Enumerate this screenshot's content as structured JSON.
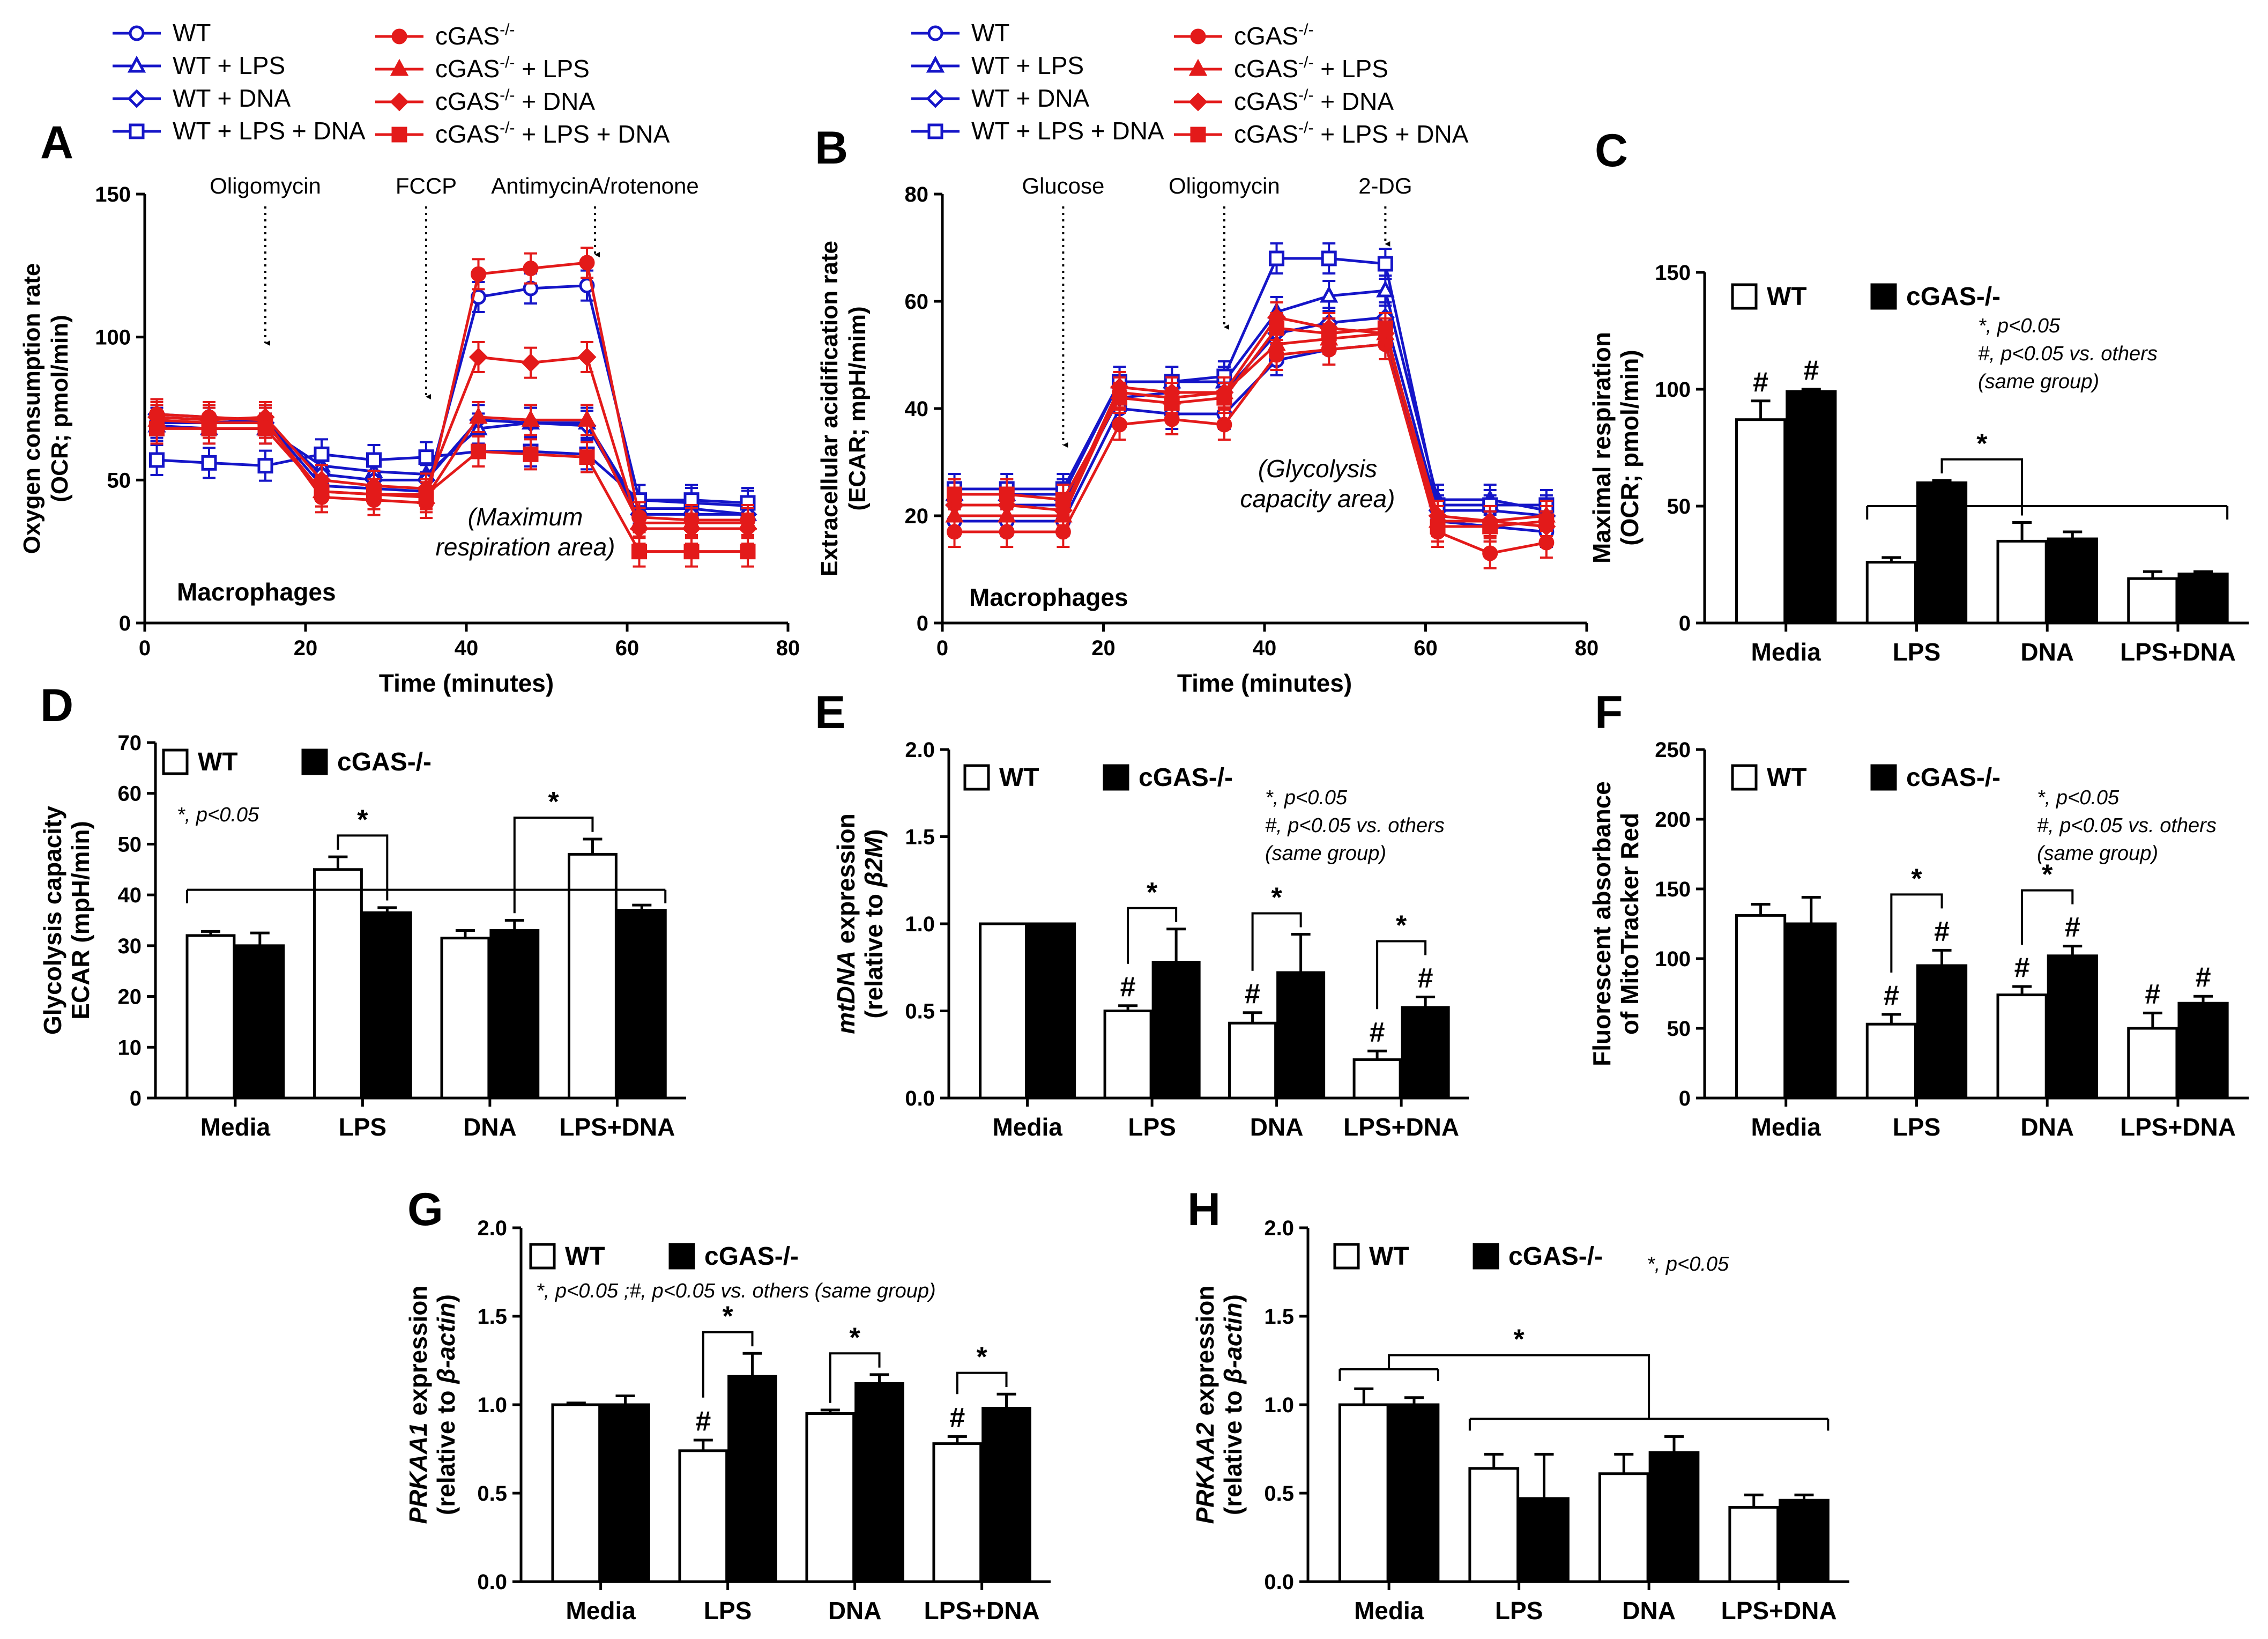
{
  "colors": {
    "wt": "#1515c8",
    "ko": "#e31a1a",
    "black": "#000000"
  },
  "line_legend": {
    "wt": [
      "WT",
      "WT + LPS",
      "WT + DNA",
      "WT + LPS + DNA"
    ],
    "ko_base": "cGAS",
    "ko_sup": "-/-",
    "ko_suffix": [
      "",
      " + LPS",
      " + DNA",
      " + LPS + DNA"
    ]
  },
  "chart_data": [
    {
      "panel": "A",
      "type": "line",
      "title": "Macrophages",
      "xlabel": "Time (minutes)",
      "ylabel": [
        "Oxygen consumption rate",
        "(OCR; pmol/min)"
      ],
      "xlim": [
        0,
        80
      ],
      "ylim": [
        0,
        150
      ],
      "xticks": [
        0,
        20,
        40,
        60,
        80
      ],
      "yticks": [
        0,
        50,
        100,
        150
      ],
      "x": [
        1.5,
        8,
        15,
        22,
        28.5,
        35,
        41.5,
        48,
        55,
        61.5,
        68,
        75
      ],
      "arrows": [
        {
          "x": 15,
          "label": "Oligomycin"
        },
        {
          "x": 35,
          "label": "FCCP"
        },
        {
          "x": 56,
          "label": "AntimycinA/rotenone"
        }
      ],
      "area_label": [
        "(Maximum",
        "respiration area)"
      ],
      "series": [
        {
          "name": "WT",
          "group": "wt",
          "marker": "circle",
          "values": [
            70,
            70,
            71,
            48,
            47,
            46,
            114,
            117,
            118,
            43,
            42,
            41
          ]
        },
        {
          "name": "WT + LPS",
          "group": "wt",
          "marker": "triangle",
          "values": [
            69,
            68,
            68,
            55,
            53,
            52,
            68,
            70,
            70,
            40,
            40,
            38
          ]
        },
        {
          "name": "WT + DNA",
          "group": "wt",
          "marker": "diamond",
          "values": [
            73,
            72,
            70,
            52,
            50,
            50,
            71,
            70,
            69,
            38,
            38,
            38
          ]
        },
        {
          "name": "WT + LPS + DNA",
          "group": "wt",
          "marker": "square",
          "values": [
            57,
            56,
            55,
            59,
            57,
            58,
            60,
            60,
            59,
            43,
            43,
            42
          ]
        },
        {
          "name": "cGAS-/- ",
          "group": "ko",
          "marker": "circle",
          "values": [
            73,
            72,
            71,
            44,
            43,
            42,
            122,
            124,
            126,
            37,
            36,
            36
          ]
        },
        {
          "name": "cGAS-/- + LPS",
          "group": "ko",
          "marker": "triangle",
          "values": [
            71,
            70,
            70,
            46,
            45,
            44,
            72,
            71,
            71,
            35,
            35,
            35
          ]
        },
        {
          "name": "cGAS-/- + DNA",
          "group": "ko",
          "marker": "diamond",
          "values": [
            72,
            71,
            72,
            50,
            48,
            47,
            93,
            91,
            93,
            33,
            33,
            33
          ]
        },
        {
          "name": "cGAS-/- + LPS + DNA",
          "group": "ko",
          "marker": "square",
          "values": [
            68,
            68,
            68,
            46,
            45,
            45,
            60,
            59,
            58,
            25,
            25,
            25
          ]
        }
      ]
    },
    {
      "panel": "B",
      "type": "line",
      "title": "Macrophages",
      "xlabel": "Time (minutes)",
      "ylabel": [
        "Extracellular acidification rate",
        "(ECAR; mpH/mim)"
      ],
      "xlim": [
        0,
        80
      ],
      "ylim": [
        0,
        80
      ],
      "xticks": [
        0,
        20,
        40,
        60,
        80
      ],
      "yticks": [
        0,
        20,
        40,
        60,
        80
      ],
      "x": [
        1.5,
        8,
        15,
        22,
        28.5,
        35,
        41.5,
        48,
        55,
        61.5,
        68,
        75
      ],
      "arrows": [
        {
          "x": 15,
          "label": "Glucose"
        },
        {
          "x": 35,
          "label": "Oligomycin"
        },
        {
          "x": 55,
          "label": "2-DG"
        }
      ],
      "area_label": [
        "(Glycolysis",
        "capacity area)"
      ],
      "series": [
        {
          "name": "WT",
          "group": "wt",
          "marker": "circle",
          "values": [
            19,
            19,
            19,
            40,
            39,
            39,
            49,
            51,
            52,
            19,
            18,
            17
          ]
        },
        {
          "name": "WT + LPS",
          "group": "wt",
          "marker": "triangle",
          "values": [
            24,
            24,
            24,
            45,
            45,
            45,
            58,
            61,
            62,
            23,
            23,
            21
          ]
        },
        {
          "name": "WT + DNA",
          "group": "wt",
          "marker": "diamond",
          "values": [
            22,
            22,
            22,
            42,
            43,
            43,
            54,
            56,
            57,
            21,
            21,
            20
          ]
        },
        {
          "name": "WT + LPS + DNA",
          "group": "wt",
          "marker": "square",
          "values": [
            25,
            25,
            25,
            45,
            45,
            46,
            68,
            68,
            67,
            22,
            22,
            22
          ]
        },
        {
          "name": "cGAS-/- ",
          "group": "ko",
          "marker": "circle",
          "values": [
            17,
            17,
            17,
            37,
            38,
            37,
            50,
            51,
            52,
            17,
            13,
            15
          ]
        },
        {
          "name": "cGAS-/- + LPS",
          "group": "ko",
          "marker": "triangle",
          "values": [
            20,
            20,
            20,
            43,
            42,
            43,
            52,
            53,
            54,
            19,
            19,
            20
          ]
        },
        {
          "name": "cGAS-/- + DNA",
          "group": "ko",
          "marker": "diamond",
          "values": [
            22,
            22,
            21,
            44,
            43,
            43,
            57,
            55,
            54,
            20,
            19,
            18
          ]
        },
        {
          "name": "cGAS-/- + LPS + DNA",
          "group": "ko",
          "marker": "square",
          "values": [
            24,
            24,
            23,
            42,
            41,
            42,
            55,
            54,
            55,
            18,
            18,
            19
          ]
        }
      ]
    },
    {
      "panel": "C",
      "type": "bar",
      "ylabel": [
        "Maximal respiration",
        "(OCR; pmol/min)"
      ],
      "ylim": [
        0,
        150
      ],
      "yticks": [
        0,
        50,
        100,
        150
      ],
      "categories": [
        "Media",
        "LPS",
        "DNA",
        "LPS+DNA"
      ],
      "series": [
        {
          "name": "WT",
          "values": [
            87,
            26,
            35,
            19
          ],
          "errors": [
            8,
            2,
            8,
            3
          ]
        },
        {
          "name": "cGAS-/-",
          "values": [
            99,
            60,
            36,
            21
          ],
          "errors": [
            1,
            1,
            3,
            1
          ]
        }
      ],
      "notes": [
        "*, p<0.05",
        "#, p<0.05 vs. others",
        "(same group)"
      ],
      "hash": [
        [
          0,
          0
        ],
        [
          0,
          1
        ]
      ],
      "comparisons": [
        {
          "type": "pair",
          "from": [
            1,
            1
          ],
          "to": [
            2,
            0
          ],
          "label": "*"
        },
        {
          "type": "bracket",
          "from": [
            1,
            0
          ],
          "to": [
            3,
            1
          ],
          "level": 50
        }
      ]
    },
    {
      "panel": "D",
      "type": "bar",
      "ylabel": [
        "Glycolysis capacity",
        "ECAR (mpH/min)"
      ],
      "ylim": [
        0,
        70
      ],
      "yticks": [
        0,
        10,
        20,
        30,
        40,
        50,
        60,
        70
      ],
      "categories": [
        "Media",
        "LPS",
        "DNA",
        "LPS+DNA"
      ],
      "series": [
        {
          "name": "WT",
          "values": [
            32,
            45,
            31.5,
            48
          ],
          "errors": [
            0.8,
            2.5,
            1.5,
            3
          ]
        },
        {
          "name": "cGAS-/-",
          "values": [
            30,
            36.5,
            33,
            37
          ],
          "errors": [
            2.5,
            1,
            2,
            1
          ]
        }
      ],
      "notes": [
        "*, p<0.05"
      ],
      "hash": [],
      "comparisons": [
        {
          "type": "pair",
          "from": [
            1,
            0
          ],
          "to": [
            1,
            1
          ],
          "label": "*"
        },
        {
          "type": "pair",
          "from": [
            2,
            1
          ],
          "to": [
            3,
            0
          ],
          "label": "*"
        },
        {
          "type": "bracket",
          "from": [
            0,
            0
          ],
          "to": [
            3,
            1
          ],
          "level": 41
        }
      ]
    },
    {
      "panel": "E",
      "type": "bar",
      "ylabel_italic": "mtDNA",
      "ylabel_rest": " expression",
      "ylabel2_pre": "(relative to ",
      "ylabel2_italic": "β2M",
      "ylabel2_post": ")",
      "ylim": [
        0,
        2.0
      ],
      "yticks": [
        0.0,
        0.5,
        1.0,
        1.5,
        2.0
      ],
      "categories": [
        "Media",
        "LPS",
        "DNA",
        "LPS+DNA"
      ],
      "series": [
        {
          "name": "WT",
          "values": [
            1.0,
            0.5,
            0.43,
            0.22
          ],
          "errors": [
            0,
            0.03,
            0.06,
            0.05
          ]
        },
        {
          "name": "cGAS-/-",
          "values": [
            1.0,
            0.78,
            0.72,
            0.52
          ],
          "errors": [
            0,
            0.19,
            0.22,
            0.06
          ]
        }
      ],
      "notes": [
        "*, p<0.05",
        "#, p<0.05 vs. others",
        "(same group)"
      ],
      "hash": [
        [
          1,
          0
        ],
        [
          2,
          0
        ],
        [
          3,
          0
        ],
        [
          3,
          1
        ]
      ],
      "comparisons": [
        {
          "type": "pair",
          "from": [
            1,
            0
          ],
          "to": [
            1,
            1
          ],
          "label": "*"
        },
        {
          "type": "pair",
          "from": [
            2,
            0
          ],
          "to": [
            2,
            1
          ],
          "label": "*"
        },
        {
          "type": "pair",
          "from": [
            3,
            0
          ],
          "to": [
            3,
            1
          ],
          "label": "*"
        }
      ]
    },
    {
      "panel": "F",
      "type": "bar",
      "ylabel": [
        "Fluorescent absorbance",
        "of MitoTracker Red"
      ],
      "ylim": [
        0,
        250
      ],
      "yticks": [
        0,
        50,
        100,
        150,
        200,
        250
      ],
      "categories": [
        "Media",
        "LPS",
        "DNA",
        "LPS+DNA"
      ],
      "series": [
        {
          "name": "WT",
          "values": [
            131,
            53,
            74,
            50
          ],
          "errors": [
            8,
            7,
            6,
            11
          ]
        },
        {
          "name": "cGAS-/-",
          "values": [
            125,
            95,
            102,
            68
          ],
          "errors": [
            19,
            11,
            7,
            5
          ]
        }
      ],
      "notes": [
        "*, p<0.05",
        "#, p<0.05 vs. others",
        "(same group)"
      ],
      "hash": [
        [
          1,
          0
        ],
        [
          2,
          0
        ],
        [
          3,
          0
        ],
        [
          1,
          1
        ],
        [
          2,
          1
        ],
        [
          3,
          1
        ]
      ],
      "comparisons": [
        {
          "type": "pair",
          "from": [
            1,
            0
          ],
          "to": [
            1,
            1
          ],
          "label": "*"
        },
        {
          "type": "pair",
          "from": [
            2,
            0
          ],
          "to": [
            2,
            1
          ],
          "label": "*"
        }
      ]
    },
    {
      "panel": "G",
      "type": "bar",
      "ylabel_italic": "PRKAA1",
      "ylabel_rest": " expression",
      "ylabel2_pre": "(relative to ",
      "ylabel2_italic": "β-actin",
      "ylabel2_post": ")",
      "ylim": [
        0,
        2.0
      ],
      "yticks": [
        0.0,
        0.5,
        1.0,
        1.5,
        2.0
      ],
      "categories": [
        "Media",
        "LPS",
        "DNA",
        "LPS+DNA"
      ],
      "series": [
        {
          "name": "WT",
          "values": [
            1.0,
            0.74,
            0.95,
            0.78
          ],
          "errors": [
            0.01,
            0.06,
            0.02,
            0.04
          ]
        },
        {
          "name": "cGAS-/-",
          "values": [
            1.0,
            1.16,
            1.12,
            0.98
          ],
          "errors": [
            0.05,
            0.13,
            0.05,
            0.08
          ]
        }
      ],
      "notes": [
        "*, p<0.05 ;#, p<0.05 vs. others (same group)"
      ],
      "hash": [
        [
          1,
          0
        ],
        [
          3,
          0
        ]
      ],
      "comparisons": [
        {
          "type": "pair",
          "from": [
            1,
            0
          ],
          "to": [
            1,
            1
          ],
          "label": "*"
        },
        {
          "type": "pair",
          "from": [
            2,
            0
          ],
          "to": [
            2,
            1
          ],
          "label": "*"
        },
        {
          "type": "pair",
          "from": [
            3,
            0
          ],
          "to": [
            3,
            1
          ],
          "label": "*"
        }
      ]
    },
    {
      "panel": "H",
      "type": "bar",
      "ylabel_italic": "PRKAA2",
      "ylabel_rest": " expression",
      "ylabel2_pre": "(relative to ",
      "ylabel2_italic": "β-actin",
      "ylabel2_post": ")",
      "ylim": [
        0,
        2.0
      ],
      "yticks": [
        0.0,
        0.5,
        1.0,
        1.5,
        2.0
      ],
      "categories": [
        "Media",
        "LPS",
        "DNA",
        "LPS+DNA"
      ],
      "series": [
        {
          "name": "WT",
          "values": [
            1.0,
            0.64,
            0.61,
            0.42
          ],
          "errors": [
            0.09,
            0.08,
            0.11,
            0.07
          ]
        },
        {
          "name": "cGAS-/-",
          "values": [
            1.0,
            0.47,
            0.73,
            0.46
          ],
          "errors": [
            0.04,
            0.25,
            0.09,
            0.03
          ]
        }
      ],
      "notes": [
        "*, p<0.05"
      ],
      "hash": [],
      "comparisons": [
        {
          "type": "media-bracket",
          "label": "*"
        }
      ]
    }
  ]
}
